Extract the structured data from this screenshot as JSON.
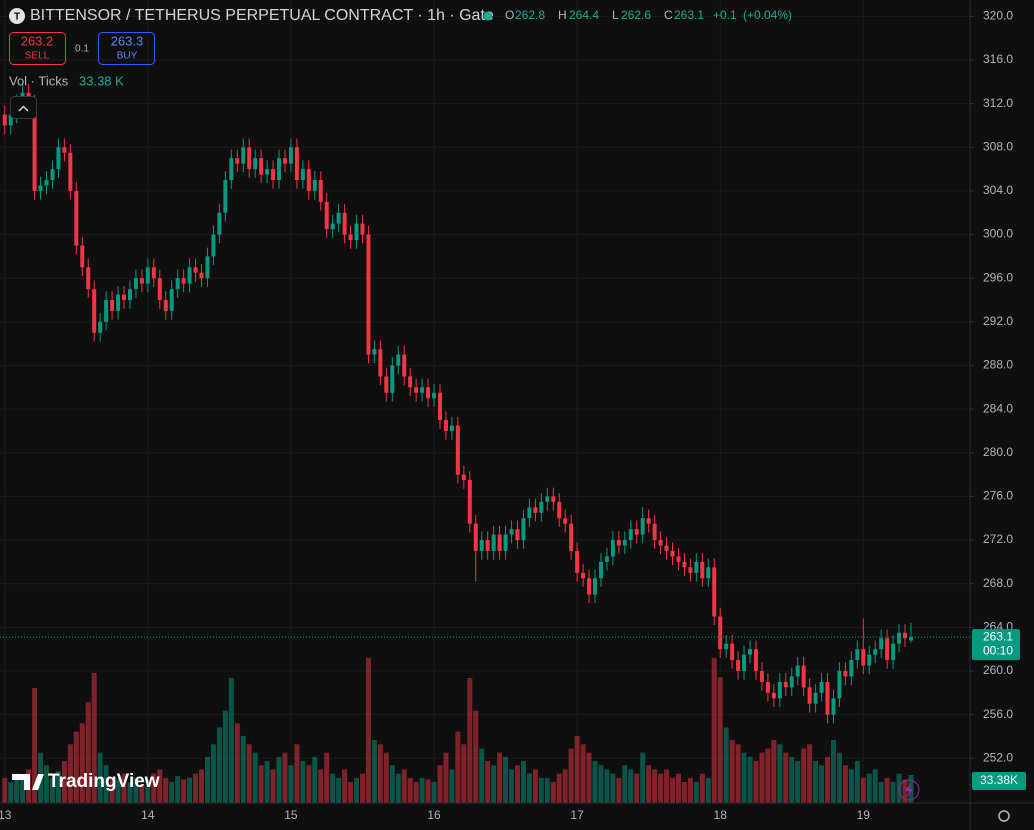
{
  "chart_data": {
    "type": "candlestick",
    "title": "BITTENSOR / TETHERUS PERPETUAL CONTRACT · 1h · Gate",
    "ohlc_labels": [
      "O",
      "H",
      "L",
      "C"
    ],
    "change": "+0.1",
    "change_pct": "(+0.04%)",
    "sell_price": 263.2,
    "sell_label": "SELL",
    "spread": 0.1,
    "buy_price": 263.3,
    "buy_label": "BUY",
    "volume_name": "Vol · Ticks",
    "volume_last_label": "33.38 K",
    "volume_axis_label": "33.38K",
    "countdown": "00:10",
    "watermark": "TradingView",
    "up_color": "#089981",
    "down_color": "#f23645",
    "grid": true,
    "xlim": [
      -0.8,
      161.9
    ],
    "ylim": [
      247.9,
      321.5
    ],
    "xticks": [
      {
        "value": 0,
        "label": "13"
      },
      {
        "value": 24,
        "label": "14"
      },
      {
        "value": 48,
        "label": "15"
      },
      {
        "value": 72,
        "label": "16"
      },
      {
        "value": 96,
        "label": "17"
      },
      {
        "value": 120,
        "label": "18"
      },
      {
        "value": 144,
        "label": "19"
      }
    ],
    "yticks": [
      {
        "value": 320,
        "label": "320.0"
      },
      {
        "value": 316,
        "label": "316.0"
      },
      {
        "value": 312,
        "label": "312.0"
      },
      {
        "value": 308,
        "label": "308.0"
      },
      {
        "value": 304,
        "label": "304.0"
      },
      {
        "value": 300,
        "label": "300.0"
      },
      {
        "value": 296,
        "label": "296.0"
      },
      {
        "value": 292,
        "label": "292.0"
      },
      {
        "value": 288,
        "label": "288.0"
      },
      {
        "value": 284,
        "label": "284.0"
      },
      {
        "value": 280,
        "label": "280.0"
      },
      {
        "value": 276,
        "label": "276.0"
      },
      {
        "value": 272,
        "label": "272.0"
      },
      {
        "value": 268,
        "label": "268.0"
      },
      {
        "value": 264,
        "label": "264.0"
      },
      {
        "value": 260,
        "label": "260.0"
      },
      {
        "value": 256,
        "label": "256.0"
      },
      {
        "value": 252,
        "label": "252.0"
      }
    ],
    "x": [
      0,
      1,
      2,
      3,
      4,
      5,
      6,
      7,
      8,
      9,
      10,
      11,
      12,
      13,
      14,
      15,
      16,
      17,
      18,
      19,
      20,
      21,
      22,
      23,
      24,
      25,
      26,
      27,
      28,
      29,
      30,
      31,
      32,
      33,
      34,
      35,
      36,
      37,
      38,
      39,
      40,
      41,
      42,
      43,
      44,
      45,
      46,
      47,
      48,
      49,
      50,
      51,
      52,
      53,
      54,
      55,
      56,
      57,
      58,
      59,
      60,
      61,
      62,
      63,
      64,
      65,
      66,
      67,
      68,
      69,
      70,
      71,
      72,
      73,
      74,
      75,
      76,
      77,
      78,
      79,
      80,
      81,
      82,
      83,
      84,
      85,
      86,
      87,
      88,
      89,
      90,
      91,
      92,
      93,
      94,
      95,
      96,
      97,
      98,
      99,
      100,
      101,
      102,
      103,
      104,
      105,
      106,
      107,
      108,
      109,
      110,
      111,
      112,
      113,
      114,
      115,
      116,
      117,
      118,
      119,
      120,
      121,
      122,
      123,
      124,
      125,
      126,
      127,
      128,
      129,
      130,
      131,
      132,
      133,
      134,
      135,
      136,
      137,
      138,
      139,
      140,
      141,
      142,
      143,
      144,
      145,
      146,
      147,
      148,
      149,
      150,
      151,
      152
    ],
    "open": [
      311,
      310,
      311,
      312,
      313,
      312,
      304,
      304.5,
      305,
      306,
      308,
      307.5,
      304,
      299,
      297,
      295,
      291,
      292,
      294,
      293,
      294.5,
      294,
      295,
      296,
      295.5,
      297,
      296,
      294,
      293,
      295,
      296,
      295.5,
      297,
      296.5,
      296,
      298,
      300,
      302,
      305,
      307,
      306.5,
      308,
      306,
      307,
      305.5,
      306,
      305,
      307,
      306.5,
      308,
      305,
      306,
      304,
      305,
      303,
      300.5,
      301,
      302,
      300,
      299.5,
      301,
      300,
      289,
      289.5,
      287,
      285.5,
      288,
      289,
      287,
      286,
      285.5,
      286,
      285,
      285.5,
      283,
      282,
      282.5,
      278,
      277.5,
      273.5,
      271,
      272,
      271,
      272.5,
      271,
      272.5,
      273,
      272,
      274,
      275,
      274.5,
      275.5,
      276,
      275.5,
      274,
      273.5,
      271,
      269,
      268.5,
      267,
      268.5,
      270,
      270.5,
      272,
      271.5,
      272,
      273,
      272.5,
      274,
      273.5,
      272,
      271.5,
      271,
      270.5,
      270,
      269.5,
      269,
      270,
      268.5,
      269.5,
      265,
      262,
      262.5,
      261,
      260,
      261.5,
      262,
      260,
      259,
      258,
      257.5,
      259,
      258.5,
      259.5,
      260.5,
      258.5,
      257,
      258,
      259,
      256,
      257.5,
      260,
      259.5,
      261,
      262,
      260.5,
      261.5,
      262,
      263,
      261,
      262.5,
      263.5,
      262.8
    ],
    "high": [
      311.8,
      311.8,
      312.8,
      313.8,
      313.8,
      312.8,
      305.3,
      305.8,
      306.8,
      308.8,
      308.8,
      308.3,
      304.8,
      299.8,
      297.8,
      295.8,
      292.8,
      294.8,
      294.8,
      295.3,
      295.3,
      295.8,
      296.8,
      296.8,
      297.8,
      297.8,
      296.8,
      294.8,
      295.8,
      296.8,
      296.8,
      297.8,
      297.8,
      297.3,
      298.8,
      300.8,
      302.8,
      305.8,
      307.8,
      307.8,
      308.8,
      308.8,
      307.8,
      307.8,
      306.8,
      306.8,
      307.8,
      307.8,
      308.8,
      308.8,
      306.8,
      306.8,
      305.8,
      305.8,
      303.8,
      301.8,
      302.8,
      302.8,
      300.8,
      301.8,
      301.8,
      300.8,
      290.3,
      290.3,
      287.8,
      288.8,
      289.8,
      289.8,
      287.8,
      286.8,
      286.8,
      286.8,
      286.3,
      286.3,
      283.8,
      283.3,
      283.3,
      278.8,
      278.3,
      274.3,
      272.8,
      272.8,
      273.3,
      273.3,
      273.3,
      273.8,
      273.8,
      274.8,
      275.8,
      275.8,
      276.3,
      276.8,
      276.8,
      276.3,
      274.8,
      274.3,
      271.8,
      269.8,
      269.3,
      269.3,
      270.8,
      271.3,
      272.8,
      272.8,
      272.8,
      273.8,
      273.8,
      275.0,
      274.8,
      274.3,
      272.8,
      272.3,
      271.8,
      271.3,
      270.8,
      270.3,
      270.8,
      270.8,
      270.3,
      270.3,
      265.8,
      263.3,
      263.3,
      261.8,
      262.3,
      262.8,
      262.8,
      260.8,
      259.8,
      258.8,
      259.8,
      259.8,
      260.3,
      261.3,
      261.3,
      259.3,
      258.8,
      259.8,
      259.8,
      258.3,
      260.8,
      260.8,
      261.8,
      262.8,
      264.8,
      262.3,
      262.8,
      263.8,
      263.8,
      263.3,
      264.3,
      264.3,
      264.4
    ],
    "low": [
      309.2,
      309.2,
      310.2,
      311.2,
      311.2,
      303.2,
      303.2,
      303.7,
      304.2,
      305.2,
      306.7,
      303.2,
      298.2,
      296.2,
      294.2,
      290.2,
      290.2,
      291.2,
      292.2,
      292.2,
      293.2,
      293.2,
      294.2,
      294.7,
      294.7,
      295.2,
      293.2,
      292.2,
      292.2,
      294.2,
      294.7,
      294.7,
      295.7,
      295.2,
      295.2,
      297.2,
      299.2,
      301.2,
      304.2,
      305.7,
      305.7,
      305.2,
      305.2,
      304.7,
      304.7,
      304.2,
      304.2,
      305.7,
      305.7,
      304.2,
      304.2,
      303.2,
      303.2,
      302.2,
      299.7,
      299.7,
      300.2,
      299.2,
      298.7,
      298.7,
      299.2,
      288.2,
      288.2,
      286.2,
      284.7,
      284.7,
      287.2,
      286.2,
      285.2,
      284.7,
      284.7,
      284.2,
      284.2,
      282.2,
      281.2,
      281.2,
      277.2,
      276.7,
      272.7,
      268.2,
      270.2,
      270.2,
      270.2,
      270.2,
      270.2,
      271.7,
      271.2,
      271.2,
      273.2,
      273.7,
      273.7,
      274.7,
      274.7,
      273.2,
      272.7,
      270.2,
      268.2,
      267.7,
      266.2,
      266.2,
      267.7,
      269.2,
      269.7,
      270.7,
      270.7,
      271.2,
      271.7,
      271.7,
      272.7,
      271.2,
      270.7,
      270.2,
      269.7,
      269.2,
      268.7,
      268.2,
      268.2,
      267.7,
      267.7,
      264.2,
      261.2,
      261.2,
      260.2,
      259.2,
      259.2,
      260.7,
      259.2,
      258.2,
      257.2,
      256.7,
      256.7,
      257.7,
      257.7,
      258.7,
      257.7,
      256.2,
      256.2,
      257.2,
      255.2,
      255.2,
      256.7,
      258.7,
      258.7,
      260.2,
      259.7,
      259.7,
      260.7,
      261.2,
      260.2,
      260.2,
      261.7,
      262.2,
      262.6
    ],
    "close": [
      310,
      311,
      312,
      313,
      312,
      304,
      304.5,
      305,
      306,
      308,
      307.5,
      304,
      299,
      297,
      295,
      291,
      292,
      294,
      293,
      294.5,
      294,
      295,
      296,
      295.5,
      297,
      296,
      294,
      293,
      295,
      296,
      295.5,
      297,
      296.5,
      296,
      298,
      300,
      302,
      305,
      307,
      306.5,
      308,
      306,
      307,
      305.5,
      306,
      305,
      307,
      306.5,
      308,
      305,
      306,
      304,
      305,
      303,
      300.5,
      301,
      302,
      300,
      299.5,
      301,
      300,
      289,
      289.5,
      287,
      285.5,
      288,
      289,
      287,
      286,
      285.5,
      286,
      285,
      285.5,
      283,
      282,
      282.5,
      278,
      277.5,
      273.5,
      271,
      272,
      271,
      272.5,
      271,
      272.5,
      273,
      272,
      274,
      275,
      274.5,
      275.5,
      276,
      275.5,
      274,
      273.5,
      271,
      269,
      268.5,
      267,
      268.5,
      270,
      270.5,
      272,
      271.5,
      272,
      273,
      272.5,
      274,
      273.5,
      272,
      271.5,
      271,
      270.5,
      270,
      269.5,
      269,
      270,
      268.5,
      269.5,
      265,
      262,
      262.5,
      261,
      260,
      261.5,
      262,
      260,
      259,
      258,
      257.5,
      259,
      258.5,
      259.5,
      260.5,
      258.5,
      257,
      258,
      259,
      256,
      257.5,
      260,
      259.5,
      261,
      262,
      260.5,
      261.5,
      262,
      263,
      261,
      262.5,
      263.5,
      263,
      263.1
    ],
    "volume": [
      30,
      25,
      35,
      28,
      40,
      137,
      60,
      45,
      30,
      38,
      50,
      70,
      85,
      95,
      120,
      155,
      60,
      45,
      30,
      28,
      35,
      25,
      30,
      22,
      28,
      35,
      40,
      30,
      25,
      32,
      28,
      30,
      35,
      40,
      55,
      70,
      90,
      110,
      149,
      95,
      80,
      70,
      60,
      45,
      50,
      40,
      55,
      60,
      45,
      70,
      50,
      45,
      55,
      40,
      60,
      35,
      30,
      40,
      25,
      30,
      35,
      173,
      75,
      70,
      60,
      45,
      35,
      40,
      30,
      25,
      30,
      28,
      25,
      45,
      60,
      40,
      85,
      70,
      149,
      110,
      65,
      50,
      45,
      60,
      55,
      40,
      45,
      50,
      35,
      40,
      30,
      30,
      25,
      35,
      40,
      65,
      80,
      70,
      60,
      50,
      45,
      40,
      35,
      30,
      45,
      40,
      35,
      60,
      45,
      40,
      35,
      40,
      30,
      35,
      25,
      30,
      25,
      35,
      30,
      173,
      150,
      90,
      75,
      70,
      60,
      55,
      50,
      60,
      65,
      75,
      70,
      60,
      55,
      50,
      65,
      70,
      50,
      45,
      55,
      75,
      60,
      45,
      40,
      50,
      30,
      35,
      40,
      25,
      30,
      25,
      35,
      28,
      33.38
    ]
  }
}
